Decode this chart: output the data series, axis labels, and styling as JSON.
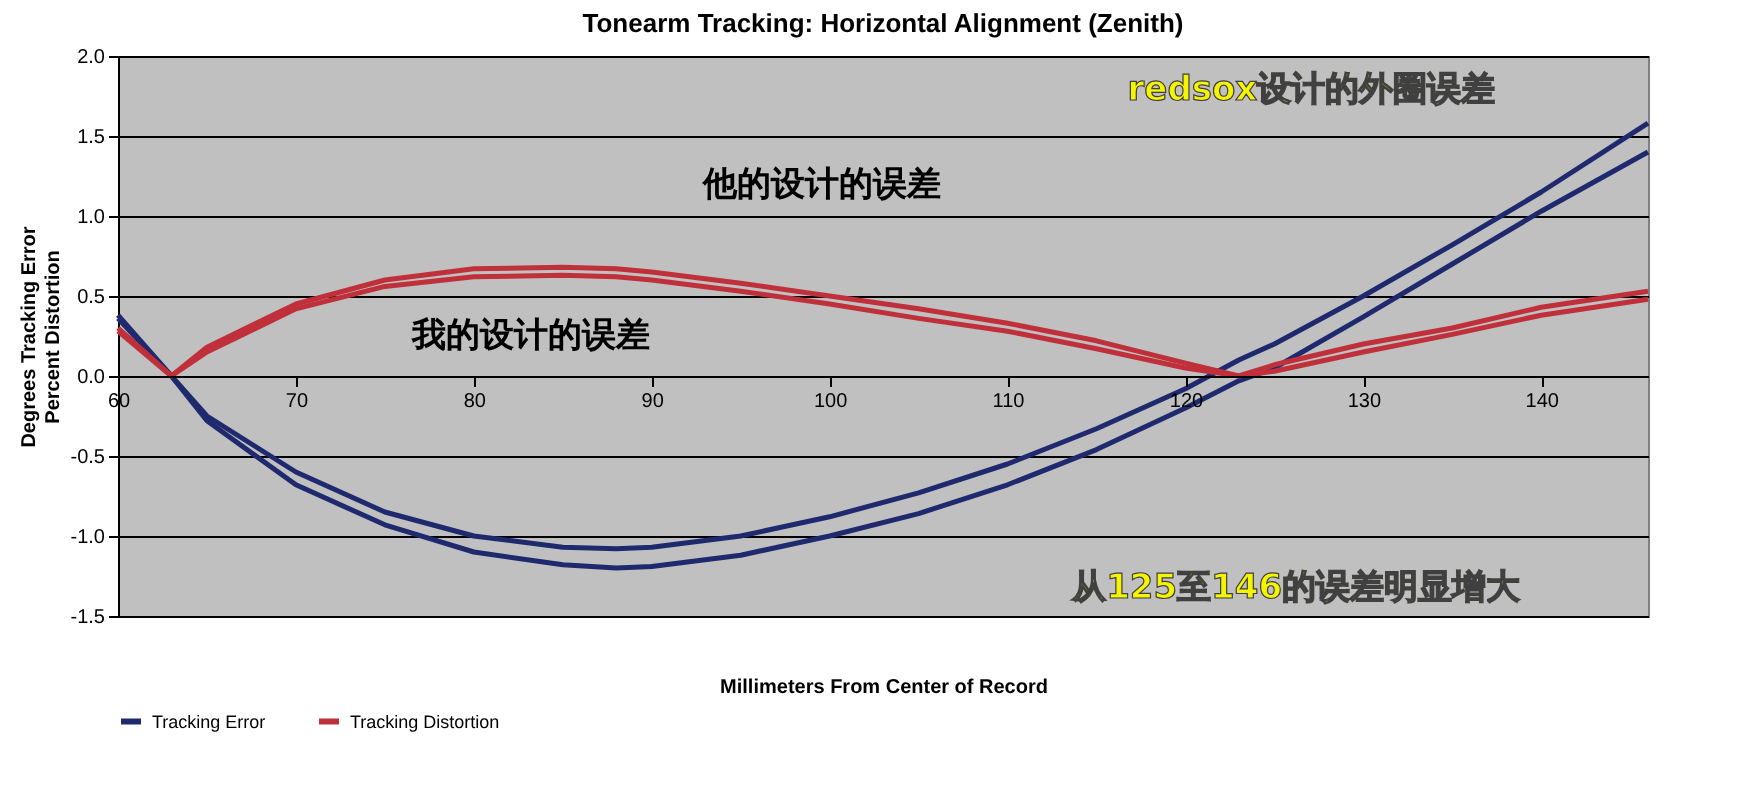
{
  "chart_data": {
    "type": "line",
    "title": "Tonearm Tracking:  Horizontal Alignment (Zenith)",
    "xlabel": "Millimeters From Center of Record",
    "ylabel": "Degrees Tracking Error\nPercent Distortion",
    "x": [
      60,
      63,
      65,
      70,
      75,
      80,
      85,
      88,
      90,
      95,
      100,
      105,
      110,
      115,
      120,
      123,
      125,
      130,
      135,
      140,
      146
    ],
    "series": [
      {
        "name": "Tracking Error",
        "color": "#1f2a6e",
        "values": [
          0.38,
          0.0,
          -0.25,
          -0.6,
          -0.85,
          -1.0,
          -1.07,
          -1.08,
          -1.07,
          -1.0,
          -0.88,
          -0.73,
          -0.55,
          -0.33,
          -0.08,
          0.1,
          0.2,
          0.5,
          0.82,
          1.15,
          1.58
        ]
      },
      {
        "color": "#1f2a6e",
        "values": [
          0.36,
          0.0,
          -0.28,
          -0.68,
          -0.93,
          -1.1,
          -1.18,
          -1.2,
          -1.19,
          -1.12,
          -1.0,
          -0.86,
          -0.68,
          -0.46,
          -0.2,
          -0.03,
          0.05,
          0.37,
          0.7,
          1.03,
          1.4
        ]
      },
      {
        "name": "Tracking Distortion",
        "color": "#c0303a",
        "values": [
          0.3,
          0.0,
          0.18,
          0.45,
          0.6,
          0.67,
          0.68,
          0.67,
          0.65,
          0.58,
          0.5,
          0.42,
          0.33,
          0.22,
          0.08,
          0.0,
          0.07,
          0.2,
          0.3,
          0.43,
          0.53
        ]
      },
      {
        "color": "#c0303a",
        "values": [
          0.28,
          0.0,
          0.15,
          0.42,
          0.56,
          0.62,
          0.63,
          0.62,
          0.6,
          0.53,
          0.45,
          0.36,
          0.28,
          0.17,
          0.05,
          0.0,
          0.03,
          0.15,
          0.26,
          0.38,
          0.48
        ]
      }
    ],
    "xlim": [
      60,
      146
    ],
    "xticks": [
      60,
      70,
      80,
      90,
      100,
      110,
      120,
      130,
      140
    ],
    "ylim": [
      -1.5,
      2.0
    ],
    "yticks": [
      {
        "value": -1.5,
        "label": "-1.5"
      },
      {
        "value": -1.0,
        "label": "-1.0"
      },
      {
        "value": -0.5,
        "label": "-0.5"
      },
      {
        "value": 0,
        "label": "0.0"
      },
      {
        "value": 0.5,
        "label": "0.5"
      },
      {
        "value": 1.0,
        "label": "1.0"
      },
      {
        "value": 1.5,
        "label": "1.5"
      },
      {
        "value": 2.0,
        "label": "2.0"
      }
    ],
    "grid": "y",
    "legend": "bottom left",
    "marker": "none",
    "line_style": "solid",
    "annotations": [
      "他的设计的误差",
      "我的设计的误差",
      "redsox设计的外圈误差",
      "从125至146的误差明显增大"
    ]
  }
}
